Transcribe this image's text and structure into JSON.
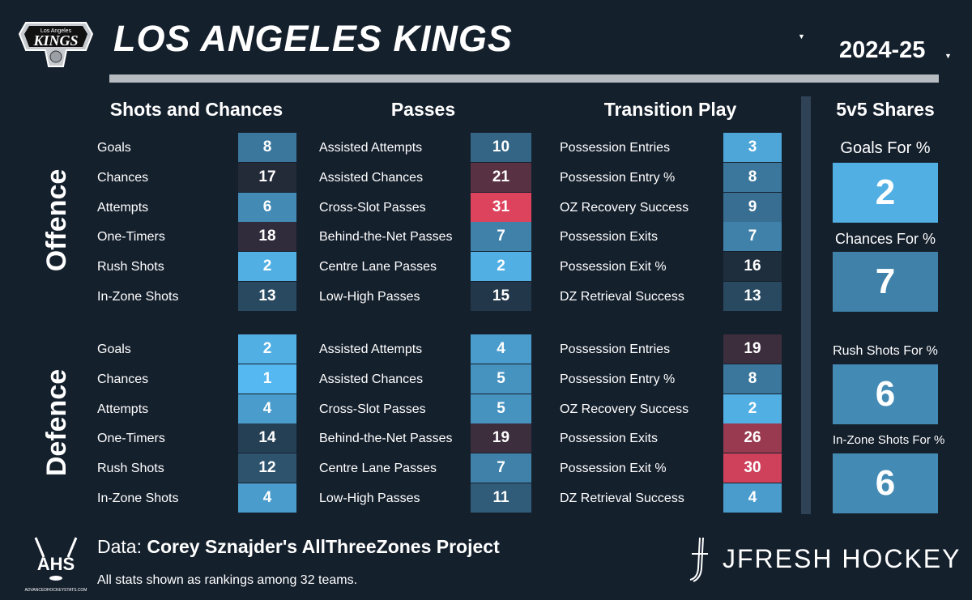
{
  "header": {
    "logo_text_small": "Los Angeles",
    "logo_text": "KINGS",
    "team": "LOS ANGELES KINGS",
    "team_caret": "▼",
    "season": "2024-25",
    "season_caret": "▼"
  },
  "columns": {
    "shots": "Shots and Chances",
    "passes": "Passes",
    "transition": "Transition Play",
    "shares": "5v5 Shares"
  },
  "sides": {
    "offence": "Offence",
    "defence": "Defence"
  },
  "offence": {
    "shots": [
      {
        "label": "Goals",
        "rank": "8"
      },
      {
        "label": "Chances",
        "rank": "17"
      },
      {
        "label": "Attempts",
        "rank": "6"
      },
      {
        "label": "One-Timers",
        "rank": "18"
      },
      {
        "label": "Rush Shots",
        "rank": "2"
      },
      {
        "label": "In-Zone Shots",
        "rank": "13"
      }
    ],
    "passes": [
      {
        "label": "Assisted Attempts",
        "rank": "10"
      },
      {
        "label": "Assisted Chances",
        "rank": "21"
      },
      {
        "label": "Cross-Slot Passes",
        "rank": "31"
      },
      {
        "label": "Behind-the-Net Passes",
        "rank": "7"
      },
      {
        "label": "Centre Lane Passes",
        "rank": "2"
      },
      {
        "label": "Low-High Passes",
        "rank": "15"
      }
    ],
    "transition": [
      {
        "label": "Possession Entries",
        "rank": "3"
      },
      {
        "label": "Possession Entry %",
        "rank": "8"
      },
      {
        "label": "OZ Recovery Success",
        "rank": "9"
      },
      {
        "label": "Possession Exits",
        "rank": "7"
      },
      {
        "label": "Possession Exit %",
        "rank": "16"
      },
      {
        "label": "DZ Retrieval Success",
        "rank": "13"
      }
    ]
  },
  "defence": {
    "shots": [
      {
        "label": "Goals",
        "rank": "2"
      },
      {
        "label": "Chances",
        "rank": "1"
      },
      {
        "label": "Attempts",
        "rank": "4"
      },
      {
        "label": "One-Timers",
        "rank": "14"
      },
      {
        "label": "Rush Shots",
        "rank": "12"
      },
      {
        "label": "In-Zone Shots",
        "rank": "4"
      }
    ],
    "passes": [
      {
        "label": "Assisted Attempts",
        "rank": "4"
      },
      {
        "label": "Assisted Chances",
        "rank": "5"
      },
      {
        "label": "Cross-Slot Passes",
        "rank": "5"
      },
      {
        "label": "Behind-the-Net Passes",
        "rank": "19"
      },
      {
        "label": "Centre Lane Passes",
        "rank": "7"
      },
      {
        "label": "Low-High Passes",
        "rank": "11"
      }
    ],
    "transition": [
      {
        "label": "Possession Entries",
        "rank": "19"
      },
      {
        "label": "Possession Entry %",
        "rank": "8"
      },
      {
        "label": "OZ Recovery Success",
        "rank": "2"
      },
      {
        "label": "Possession Exits",
        "rank": "26"
      },
      {
        "label": "Possession Exit %",
        "rank": "30"
      },
      {
        "label": "DZ Retrieval Success",
        "rank": "4"
      }
    ]
  },
  "shares": [
    {
      "label": "Goals For %",
      "rank": "2"
    },
    {
      "label": "Chances For %",
      "rank": "7"
    },
    {
      "label": "Rush Shots For %",
      "rank": "6"
    },
    {
      "label": "In-Zone Shots For %",
      "rank": "6"
    }
  ],
  "footer": {
    "ahs_text": "AHS",
    "ahs_site": "ADVANCEDHOCKEYSTATS.COM",
    "data_prefix": "Data: ",
    "data_source": "Corey Sznajder's AllThreeZones Project",
    "note": "All stats shown as rankings among 32 teams.",
    "brand": "JFRESH HOCKEY"
  },
  "colors": {
    "background": "#15202d",
    "rank_best": "#55b8f0",
    "rank_mid": "#1c2937",
    "rank_worst": "#ea4560"
  }
}
